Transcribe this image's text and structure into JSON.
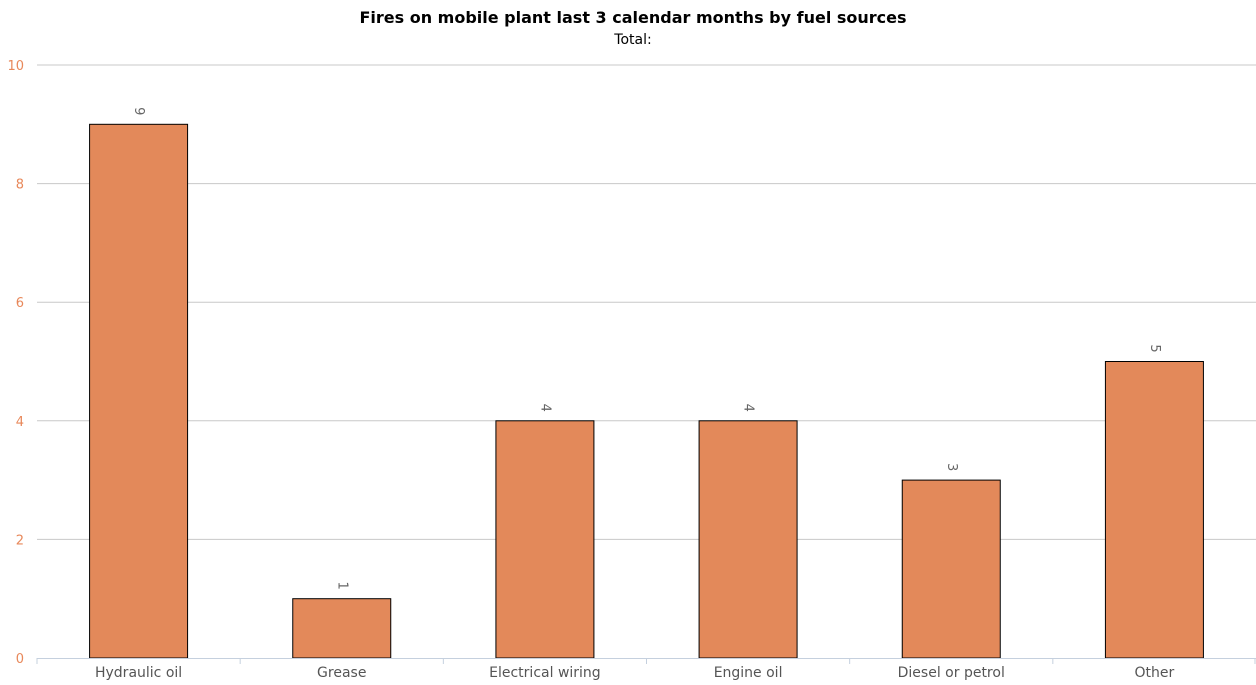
{
  "chart_data": {
    "type": "bar",
    "title": "Fires on mobile plant last 3 calendar months by fuel sources",
    "subtitle": "Total:",
    "categories": [
      "Hydraulic oil",
      "Grease",
      "Electrical wiring",
      "Engine oil",
      "Diesel or petrol",
      "Other"
    ],
    "values": [
      9,
      1,
      4,
      4,
      3,
      5
    ],
    "ylim": [
      0,
      10
    ],
    "yticks": [
      0,
      2,
      4,
      6,
      8,
      10
    ],
    "grid": true,
    "legend": "none",
    "data_labels": true,
    "colors": {
      "bar_fill": "#e3895a",
      "bar_stroke": "#000000",
      "y_tick_text": "#e8885a",
      "x_tick_text": "#555555",
      "data_label_text": "#666666",
      "grid": "#c8c8c8",
      "axis": "#c5d0de"
    }
  }
}
